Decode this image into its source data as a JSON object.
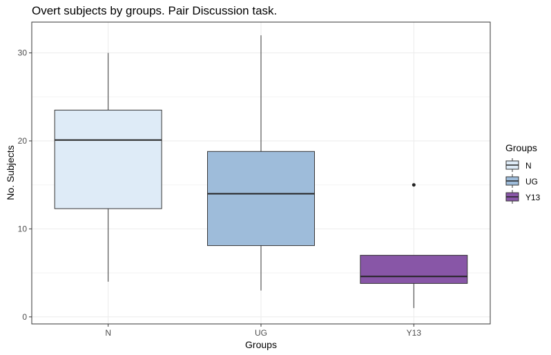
{
  "chart_data": {
    "type": "box",
    "title": "Overt subjects by groups. Pair Discussion task.",
    "xlabel": "Groups",
    "ylabel": "No. Subjects",
    "categories": [
      "N",
      "UG",
      "Y13"
    ],
    "ylim": [
      -0.8,
      33.5
    ],
    "yticks": [
      0,
      10,
      20,
      30
    ],
    "grid": true,
    "legend": {
      "title": "Groups",
      "position": "right",
      "entries": [
        "N",
        "UG",
        "Y13"
      ]
    },
    "boxes": [
      {
        "group": "N",
        "min": 4,
        "q1": 12.3,
        "median": 20.1,
        "q3": 23.5,
        "max": 30,
        "outliers": [],
        "fill": "#deebf7"
      },
      {
        "group": "UG",
        "min": 3,
        "q1": 8.1,
        "median": 14,
        "q3": 18.8,
        "max": 32,
        "outliers": [],
        "fill": "#9ebcda"
      },
      {
        "group": "Y13",
        "min": 1,
        "q1": 3.8,
        "median": 4.6,
        "q3": 7,
        "max": 7,
        "outliers": [
          15
        ],
        "fill": "#8856a7"
      }
    ]
  }
}
